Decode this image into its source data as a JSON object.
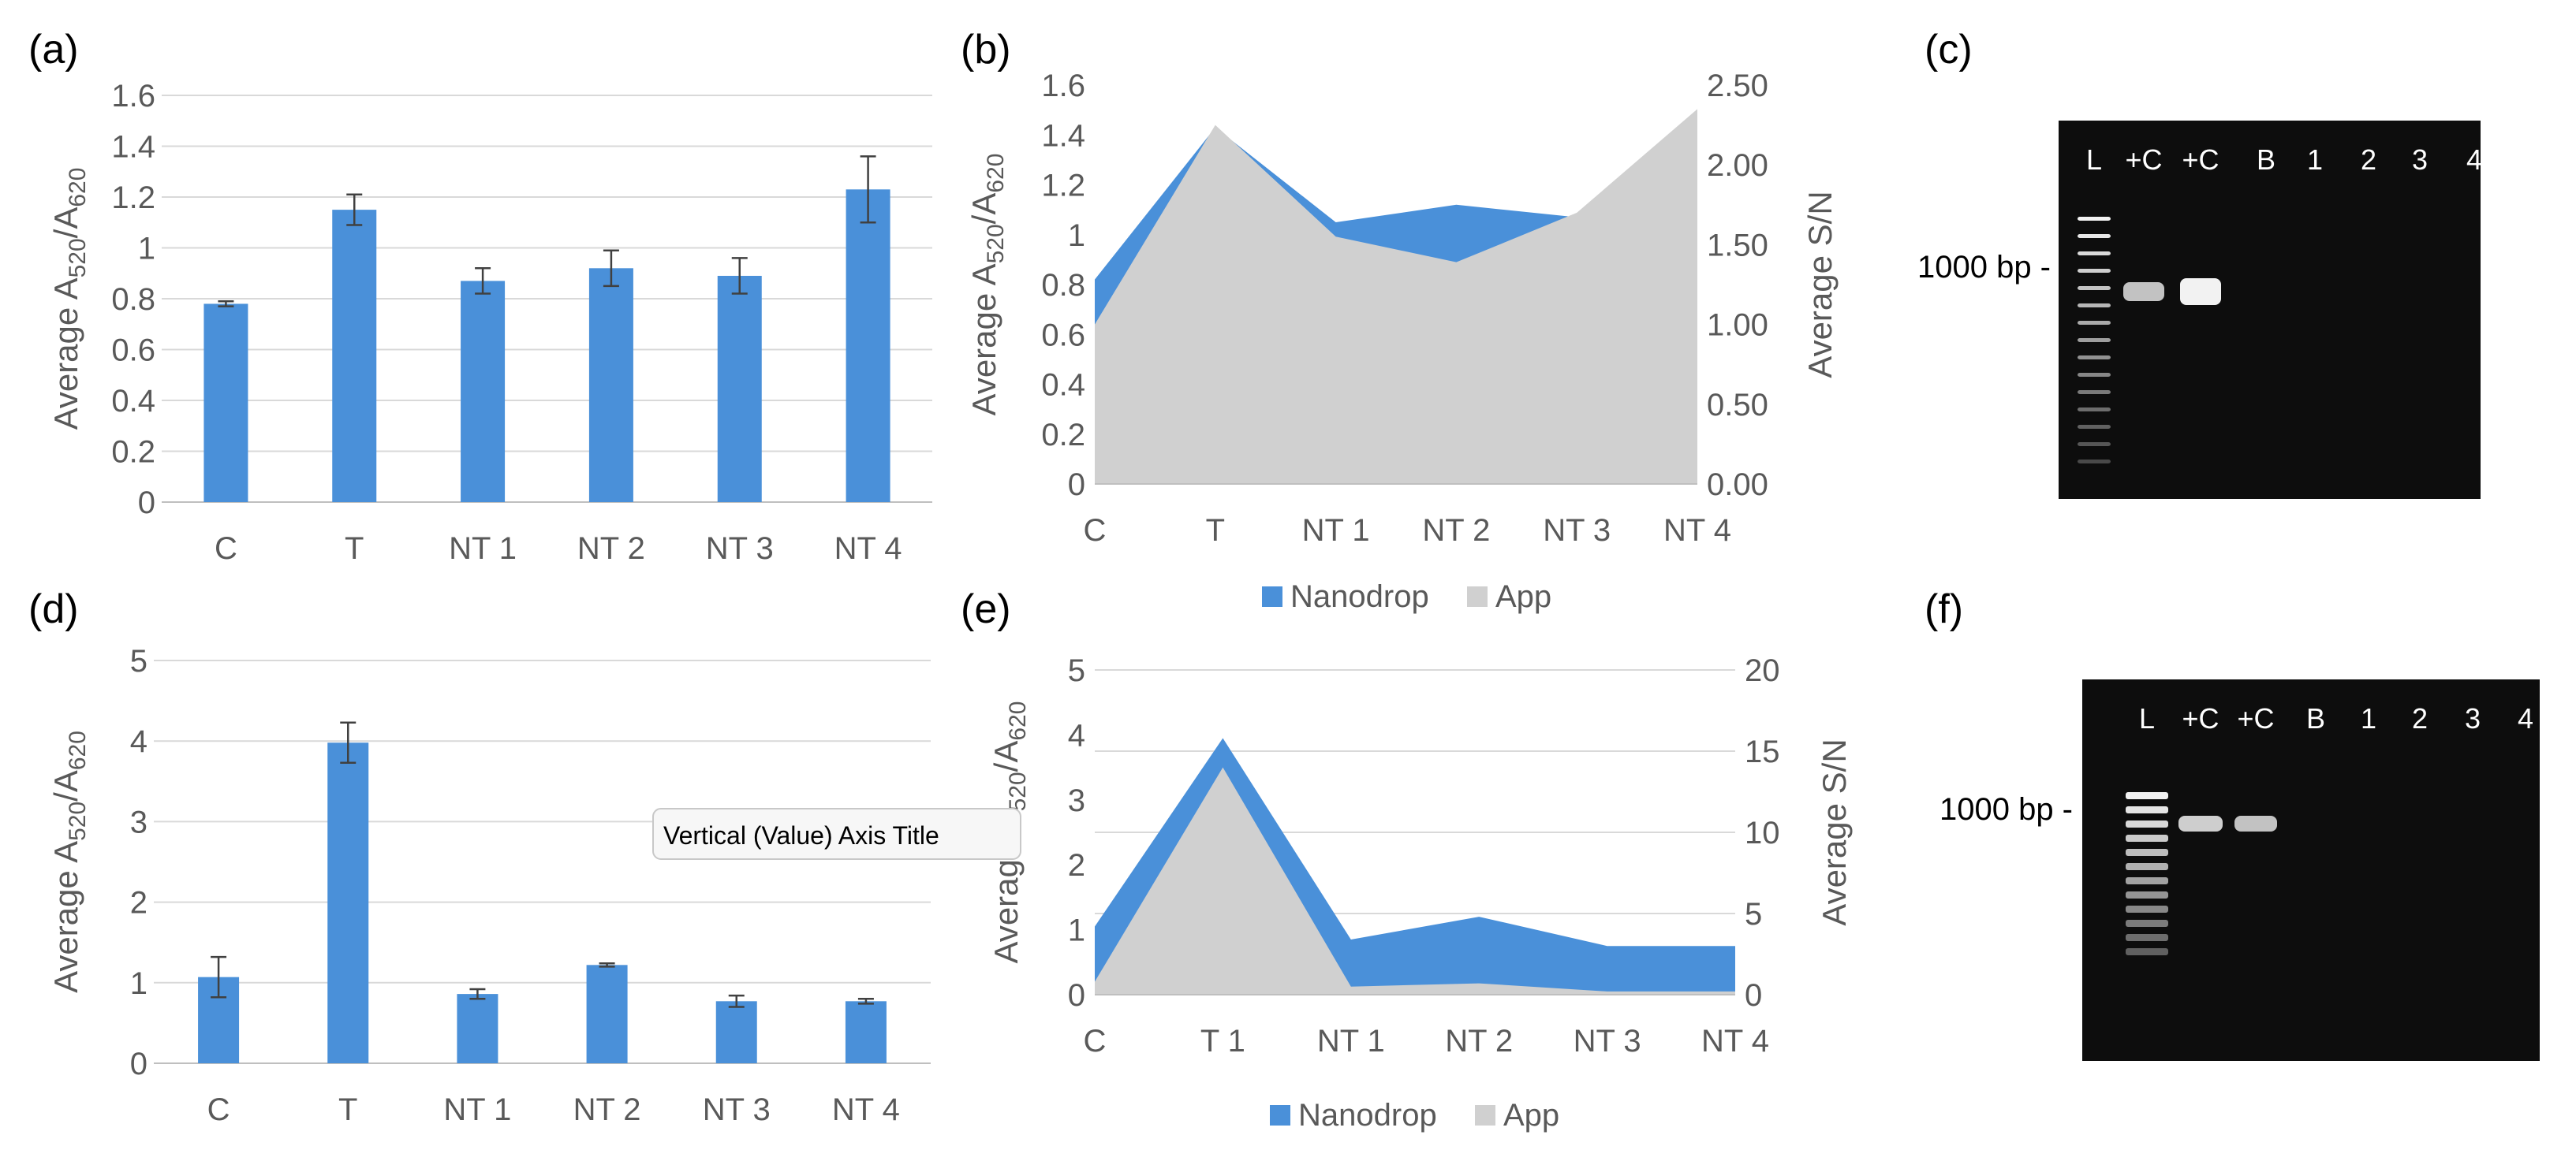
{
  "chart_data": [
    {
      "panel": "(a)",
      "type": "bar",
      "categories": [
        "C",
        "T",
        "NT 1",
        "NT 2",
        "NT 3",
        "NT 4"
      ],
      "values": [
        0.78,
        1.15,
        0.87,
        0.92,
        0.89,
        1.23
      ],
      "errors": [
        0.01,
        0.06,
        0.05,
        0.07,
        0.07,
        0.13
      ],
      "ylabel": {
        "main": "Average A",
        "sub1": "520",
        "mid": "/A",
        "sub2": "620"
      },
      "ylim": [
        0,
        1.6
      ],
      "yticks": [
        "0",
        "0.2",
        "0.4",
        "0.6",
        "0.8",
        "1",
        "1.2",
        "1.4",
        "1.6"
      ],
      "color": "#4a90d9"
    },
    {
      "panel": "(b)",
      "type": "area",
      "categories": [
        "C",
        "T",
        "NT 1",
        "NT 2",
        "NT 3",
        "NT 4"
      ],
      "series": [
        {
          "name": "Nanodrop",
          "axis": "left",
          "values": [
            0.82,
            1.43,
            1.05,
            1.12,
            1.07,
            1.49
          ],
          "color": "#4a90d9"
        },
        {
          "name": "App",
          "axis": "right",
          "values": [
            1.0,
            2.25,
            1.55,
            1.39,
            1.7,
            2.35
          ],
          "color": "#d0d0d0"
        }
      ],
      "ylabel": {
        "main": "Average A",
        "sub1": "520",
        "mid": "/A",
        "sub2": "620"
      },
      "y2label": "Average S/N",
      "ylim": [
        0,
        1.6
      ],
      "y2lim": [
        0,
        2.5
      ],
      "yticks": [
        "0",
        "0.2",
        "0.4",
        "0.6",
        "0.8",
        "1",
        "1.2",
        "1.4",
        "1.6"
      ],
      "y2ticks": [
        "0.00",
        "0.50",
        "1.00",
        "1.50",
        "2.00",
        "2.50"
      ],
      "legend": "bottom"
    },
    {
      "panel": "(d)",
      "type": "bar",
      "categories": [
        "C",
        "T",
        "NT 1",
        "NT 2",
        "NT 3",
        "NT 4"
      ],
      "values": [
        1.07,
        3.98,
        0.86,
        1.22,
        0.77,
        0.77
      ],
      "errors": [
        0.25,
        0.25,
        0.06,
        0.02,
        0.07,
        0.03
      ],
      "ylabel": {
        "main": "Average A",
        "sub1": "520",
        "mid": "/A",
        "sub2": "620"
      },
      "ylim": [
        0,
        5
      ],
      "yticks": [
        "0",
        "1",
        "2",
        "3",
        "4",
        "5"
      ],
      "color": "#4a90d9"
    },
    {
      "panel": "(e)",
      "type": "area",
      "categories": [
        "C",
        "T 1",
        "NT 1",
        "NT 2",
        "NT 3",
        "NT 4"
      ],
      "series": [
        {
          "name": "Nanodrop",
          "axis": "left",
          "values": [
            1.05,
            3.95,
            0.85,
            1.2,
            0.75,
            0.75
          ],
          "color": "#4a90d9"
        },
        {
          "name": "App",
          "axis": "right",
          "values": [
            0.8,
            14.0,
            0.5,
            0.7,
            0.2,
            0.2
          ],
          "color": "#d0d0d0"
        }
      ],
      "ylabel": {
        "main": "Average A",
        "sub1": "520",
        "mid": "/A",
        "sub2": "620"
      },
      "y2label": "Average S/N",
      "ylim": [
        0,
        5
      ],
      "y2lim": [
        0,
        20
      ],
      "yticks": [
        "0",
        "1",
        "2",
        "3",
        "4",
        "5"
      ],
      "y2ticks": [
        "0",
        "5",
        "10",
        "15",
        "20"
      ],
      "legend": "bottom"
    }
  ],
  "gels": [
    {
      "panel": "(c)",
      "lanes": [
        "L",
        "+C",
        "+C",
        "B",
        "1",
        "2",
        "3",
        "4"
      ],
      "marker": "1000 bp"
    },
    {
      "panel": "(f)",
      "lanes": [
        "L",
        "+C",
        "+C",
        "B",
        "1",
        "2",
        "3",
        "4"
      ],
      "marker": "1000 bp"
    }
  ],
  "tooltip": {
    "text": "Vertical (Value) Axis Title"
  },
  "colors": {
    "bar": "#4a90d9",
    "app": "#d0d0d0",
    "grid": "#d9d9d9",
    "text": "#595959",
    "gel": "#0d0d0d"
  }
}
